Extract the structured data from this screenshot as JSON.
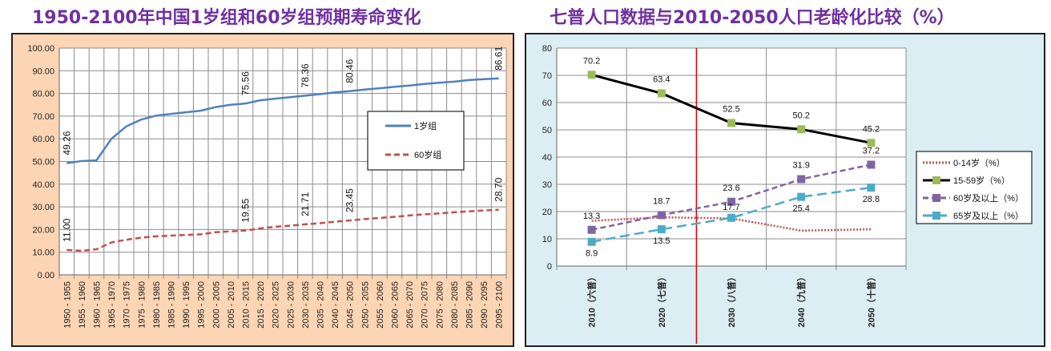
{
  "chart_data": [
    {
      "type": "line",
      "title": "1950-2100年中国1岁组和60岁组预期寿命变化",
      "categories": [
        "1950 - 1955",
        "1955 - 1960",
        "1960 - 1965",
        "1965 - 1970",
        "1970 - 1975",
        "1975 - 1980",
        "1980 - 1985",
        "1985 - 1990",
        "1990 - 1995",
        "1995 - 2000",
        "2000 - 2005",
        "2005 - 2010",
        "2010 - 2015",
        "2015 - 2020",
        "2020 - 2025",
        "2025 - 2030",
        "2030 - 2035",
        "2035 - 2040",
        "2040 - 2045",
        "2045 - 2050",
        "2050 - 2055",
        "2055 - 2060",
        "2060 - 2065",
        "2065 - 2070",
        "2070 - 2075",
        "2075 - 2080",
        "2080 - 2085",
        "2085 - 2090",
        "2090 - 2095",
        "2095 - 2100"
      ],
      "ylim": [
        0,
        100
      ],
      "yticks": [
        "0.00",
        "10.00",
        "20.00",
        "30.00",
        "40.00",
        "50.00",
        "60.00",
        "70.00",
        "80.00",
        "90.00",
        "100.00"
      ],
      "grid": true,
      "legend_placement": "right",
      "series": [
        {
          "name": "1岁组",
          "color": "#4f81bd",
          "style": "solid",
          "values": [
            49.26,
            50.2,
            50.5,
            60.0,
            65.5,
            68.5,
            70.2,
            71.0,
            71.7,
            72.4,
            74.0,
            75.0,
            75.56,
            77.0,
            77.7,
            78.36,
            79.0,
            79.7,
            80.46,
            81.0,
            81.7,
            82.3,
            82.9,
            83.5,
            84.2,
            84.7,
            85.2,
            85.9,
            86.3,
            86.61
          ],
          "labels": {
            "0": "49.26",
            "12": "75.56",
            "16": "78.36",
            "19": "80.46",
            "29": "86.61"
          }
        },
        {
          "name": "60岁组",
          "color": "#c0504d",
          "style": "dashed",
          "values": [
            11.0,
            10.6,
            11.3,
            14.3,
            15.5,
            16.4,
            17.0,
            17.3,
            17.6,
            17.9,
            18.8,
            19.2,
            19.55,
            20.5,
            21.2,
            21.71,
            22.3,
            22.8,
            23.45,
            24.0,
            24.6,
            25.1,
            25.6,
            26.2,
            26.7,
            27.1,
            27.6,
            28.0,
            28.4,
            28.7
          ],
          "labels": {
            "0": "11.00",
            "12": "19.55",
            "16": "21.71",
            "19": "23.45",
            "29": "28.70"
          }
        }
      ],
      "background_color": "#fcd5b4"
    },
    {
      "type": "line",
      "title": "七普人口数据与2010-2050人口老龄化比较（%）",
      "categories": [
        "2010（六普）",
        "2020（七普）",
        "2030（八普）",
        "2040（九普）",
        "2050（十普）"
      ],
      "ylim": [
        0,
        80
      ],
      "yticks": [
        "0",
        "10",
        "20",
        "30",
        "40",
        "50",
        "60",
        "70",
        "80"
      ],
      "grid": true,
      "legend_placement": "right",
      "marker_line": "between 2020 and 2030",
      "series": [
        {
          "name": "0-14岁（%）",
          "color": "#c0504d",
          "style": "dotted",
          "values": [
            16.6,
            17.9,
            17.5,
            13.0,
            13.5
          ],
          "labels": {}
        },
        {
          "name": "15-59岁（%）",
          "color": "#000000",
          "marker_color": "#9bbb59",
          "style": "solid",
          "values": [
            70.2,
            63.4,
            52.5,
            50.2,
            45.2
          ],
          "labels": {
            "0": "70.2",
            "1": "63.4",
            "2": "52.5",
            "3": "50.2",
            "4": "45.2"
          }
        },
        {
          "name": "60岁及以上（%）",
          "color": "#8064a2",
          "style": "dashed",
          "values": [
            13.3,
            18.7,
            23.6,
            31.9,
            37.2
          ],
          "labels": {
            "0": "13.3",
            "1": "18.7",
            "2": "23.6",
            "3": "31.9",
            "4": "37.2"
          }
        },
        {
          "name": "65岁及以上（%）",
          "color": "#4bacc6",
          "style": "longdash",
          "values": [
            8.9,
            13.5,
            17.7,
            25.4,
            28.8
          ],
          "labels": {
            "0": "8.9",
            "1": "13.5",
            "2": "17.7",
            "3": "25.4",
            "4": "28.8"
          }
        }
      ],
      "background_color": "#dbeef4"
    }
  ]
}
